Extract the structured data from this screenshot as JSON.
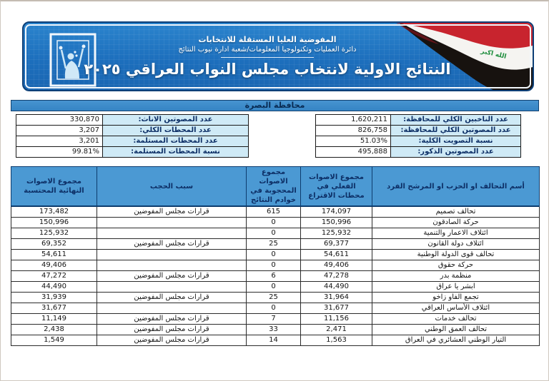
{
  "banner": {
    "org_line1": "المفوضية العليا المستقلة للانتخابات",
    "org_line2": "دائرة العمليات وتكنولوجيا المعلومات/شعبة ادارة نيوب النتائج",
    "title": "النتائج الاولية لانتخاب مجلس النواب العراقي ٢٠٢٥",
    "logo_icon": "ihec-ballot-logo",
    "flag_icon": "iraq-flag",
    "flag_text": "الله اكبر"
  },
  "governorate_title": "محافظة البصرة",
  "summary_tables": [
    {
      "id": "voters",
      "rows": [
        {
          "label": "عدد الناخبين الكلي للمحافظة:",
          "value": "1,620,211"
        },
        {
          "label": "عدد المصوتين الكلي للمحافظة:",
          "value": "826,758"
        },
        {
          "label": "نسبة التصويت الكلية:",
          "value": "51.03%"
        },
        {
          "label": "عدد المصوتين الذكور:",
          "value": "495,888"
        }
      ]
    },
    {
      "id": "stations",
      "rows": [
        {
          "label": "عدد المصوتين الاناث:",
          "value": "330,870"
        },
        {
          "label": "عدد المحطات الكلي:",
          "value": "3,207"
        },
        {
          "label": "عدد المحطات المستلمة:",
          "value": "3,201"
        },
        {
          "label": "نسبة المحطات المستلمة:",
          "value": "99.81%"
        }
      ]
    }
  ],
  "results_table": {
    "headers": [
      "أسم التحالف او الحزب او المرشح الفرد",
      "مجموع الاصوات الفعلي في محطات الاقتراع",
      "مجموع الاصوات المحجوبة في خوادم النتائج",
      "سبب الحجب",
      "مجموع الاصوات النهائية المحتسبة"
    ],
    "rows": [
      {
        "name": "تحالف تصميم",
        "actual": "174,097",
        "withheld": "615",
        "reason": "قرارات مجلس المفوضين",
        "final": "173,482"
      },
      {
        "name": "حركة الصادقون",
        "actual": "150,996",
        "withheld": "0",
        "reason": "",
        "final": "150,996"
      },
      {
        "name": "ائتلاف الاعمار والتنمية",
        "actual": "125,932",
        "withheld": "0",
        "reason": "",
        "final": "125,932"
      },
      {
        "name": "ائتلاف دولة القانون",
        "actual": "69,377",
        "withheld": "25",
        "reason": "قرارات مجلس المفوضين",
        "final": "69,352"
      },
      {
        "name": "تحالف قوى الدولة الوطنية",
        "actual": "54,611",
        "withheld": "0",
        "reason": "",
        "final": "54,611"
      },
      {
        "name": "حركة حقوق",
        "actual": "49,406",
        "withheld": "0",
        "reason": "",
        "final": "49,406"
      },
      {
        "name": "منظمة بدر",
        "actual": "47,278",
        "withheld": "6",
        "reason": "قرارات مجلس المفوضين",
        "final": "47,272"
      },
      {
        "name": "ابشر يا عراق",
        "actual": "44,490",
        "withheld": "0",
        "reason": "",
        "final": "44,490"
      },
      {
        "name": "تجمع الفاو زاخو",
        "actual": "31,964",
        "withheld": "25",
        "reason": "قرارات مجلس المفوضين",
        "final": "31,939"
      },
      {
        "name": "ائتلاف الأساس العراقي",
        "actual": "31,677",
        "withheld": "0",
        "reason": "",
        "final": "31,677"
      },
      {
        "name": "تحالف خدمات",
        "actual": "11,156",
        "withheld": "7",
        "reason": "قرارات مجلس المفوضين",
        "final": "11,149"
      },
      {
        "name": "تحالف العمق الوطني",
        "actual": "2,471",
        "withheld": "33",
        "reason": "قرارات مجلس المفوضين",
        "final": "2,438"
      },
      {
        "name": "التيار الوطني العشائري في العراق",
        "actual": "1,563",
        "withheld": "14",
        "reason": "قرارات مجلس المفوضين",
        "final": "1,549"
      }
    ]
  },
  "colors": {
    "banner_blue": "#1d6fbd",
    "table_header_blue": "#4b99d3",
    "summary_label_bg": "#cfeaf6",
    "heading_text": "#0d2f66",
    "flag_red": "#c8242e",
    "flag_green": "#1f8e3e",
    "flag_black": "#17120f"
  }
}
